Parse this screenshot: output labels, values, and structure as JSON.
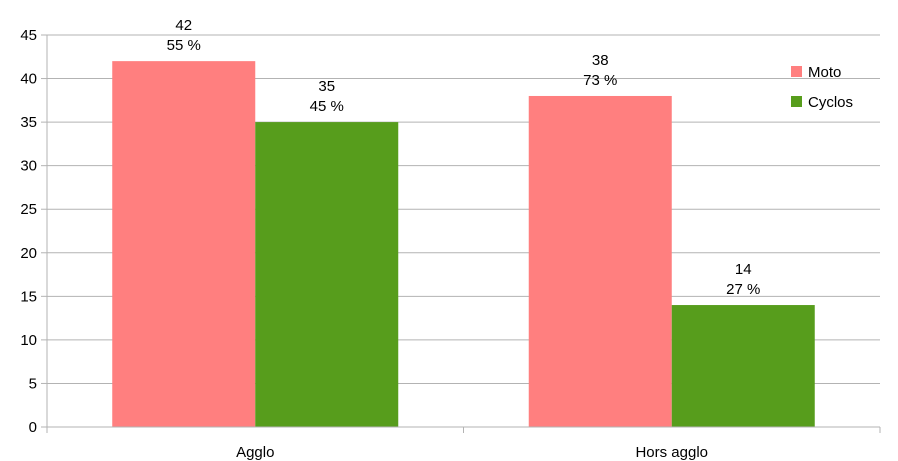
{
  "chart_data": {
    "type": "bar",
    "categories": [
      "Agglo",
      "Hors agglo"
    ],
    "series": [
      {
        "name": "Moto",
        "color": "#ff7f7f",
        "values": [
          42,
          38
        ],
        "percent_labels": [
          "55 %",
          "73 %"
        ]
      },
      {
        "name": "Cyclos",
        "color": "#579d1c",
        "values": [
          35,
          14
        ],
        "percent_labels": [
          "45 %",
          "27 %"
        ]
      }
    ],
    "ylim": [
      0,
      45
    ],
    "yticks": [
      0,
      5,
      10,
      15,
      20,
      25,
      30,
      35,
      40,
      45
    ],
    "grid": true,
    "legend": "top-right"
  }
}
